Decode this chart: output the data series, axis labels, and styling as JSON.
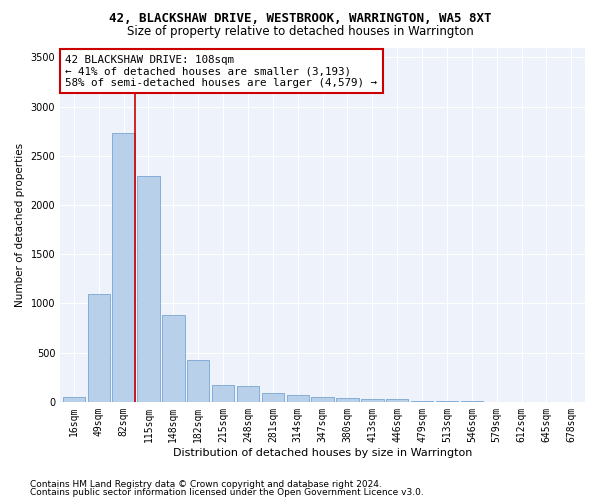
{
  "title": "42, BLACKSHAW DRIVE, WESTBROOK, WARRINGTON, WA5 8XT",
  "subtitle": "Size of property relative to detached houses in Warrington",
  "xlabel": "Distribution of detached houses by size in Warrington",
  "ylabel": "Number of detached properties",
  "categories": [
    "16sqm",
    "49sqm",
    "82sqm",
    "115sqm",
    "148sqm",
    "182sqm",
    "215sqm",
    "248sqm",
    "281sqm",
    "314sqm",
    "347sqm",
    "380sqm",
    "413sqm",
    "446sqm",
    "479sqm",
    "513sqm",
    "546sqm",
    "579sqm",
    "612sqm",
    "645sqm",
    "678sqm"
  ],
  "values": [
    50,
    1100,
    2730,
    2290,
    880,
    420,
    170,
    165,
    90,
    65,
    50,
    35,
    30,
    25,
    10,
    5,
    5,
    0,
    0,
    0,
    0
  ],
  "bar_color": "#b8d0ea",
  "bar_edgecolor": "#6699cc",
  "vline_color": "#cc0000",
  "annotation_line1": "42 BLACKSHAW DRIVE: 108sqm",
  "annotation_line2": "← 41% of detached houses are smaller (3,193)",
  "annotation_line3": "58% of semi-detached houses are larger (4,579) →",
  "annotation_box_edgecolor": "#cc0000",
  "ylim": [
    0,
    3600
  ],
  "yticks": [
    0,
    500,
    1000,
    1500,
    2000,
    2500,
    3000,
    3500
  ],
  "background_color": "#eef2fb",
  "grid_color": "#ffffff",
  "footer_line1": "Contains HM Land Registry data © Crown copyright and database right 2024.",
  "footer_line2": "Contains public sector information licensed under the Open Government Licence v3.0.",
  "title_fontsize": 9,
  "subtitle_fontsize": 8.5,
  "xlabel_fontsize": 8,
  "ylabel_fontsize": 7.5,
  "tick_fontsize": 7,
  "annotation_fontsize": 7.8,
  "footer_fontsize": 6.5
}
